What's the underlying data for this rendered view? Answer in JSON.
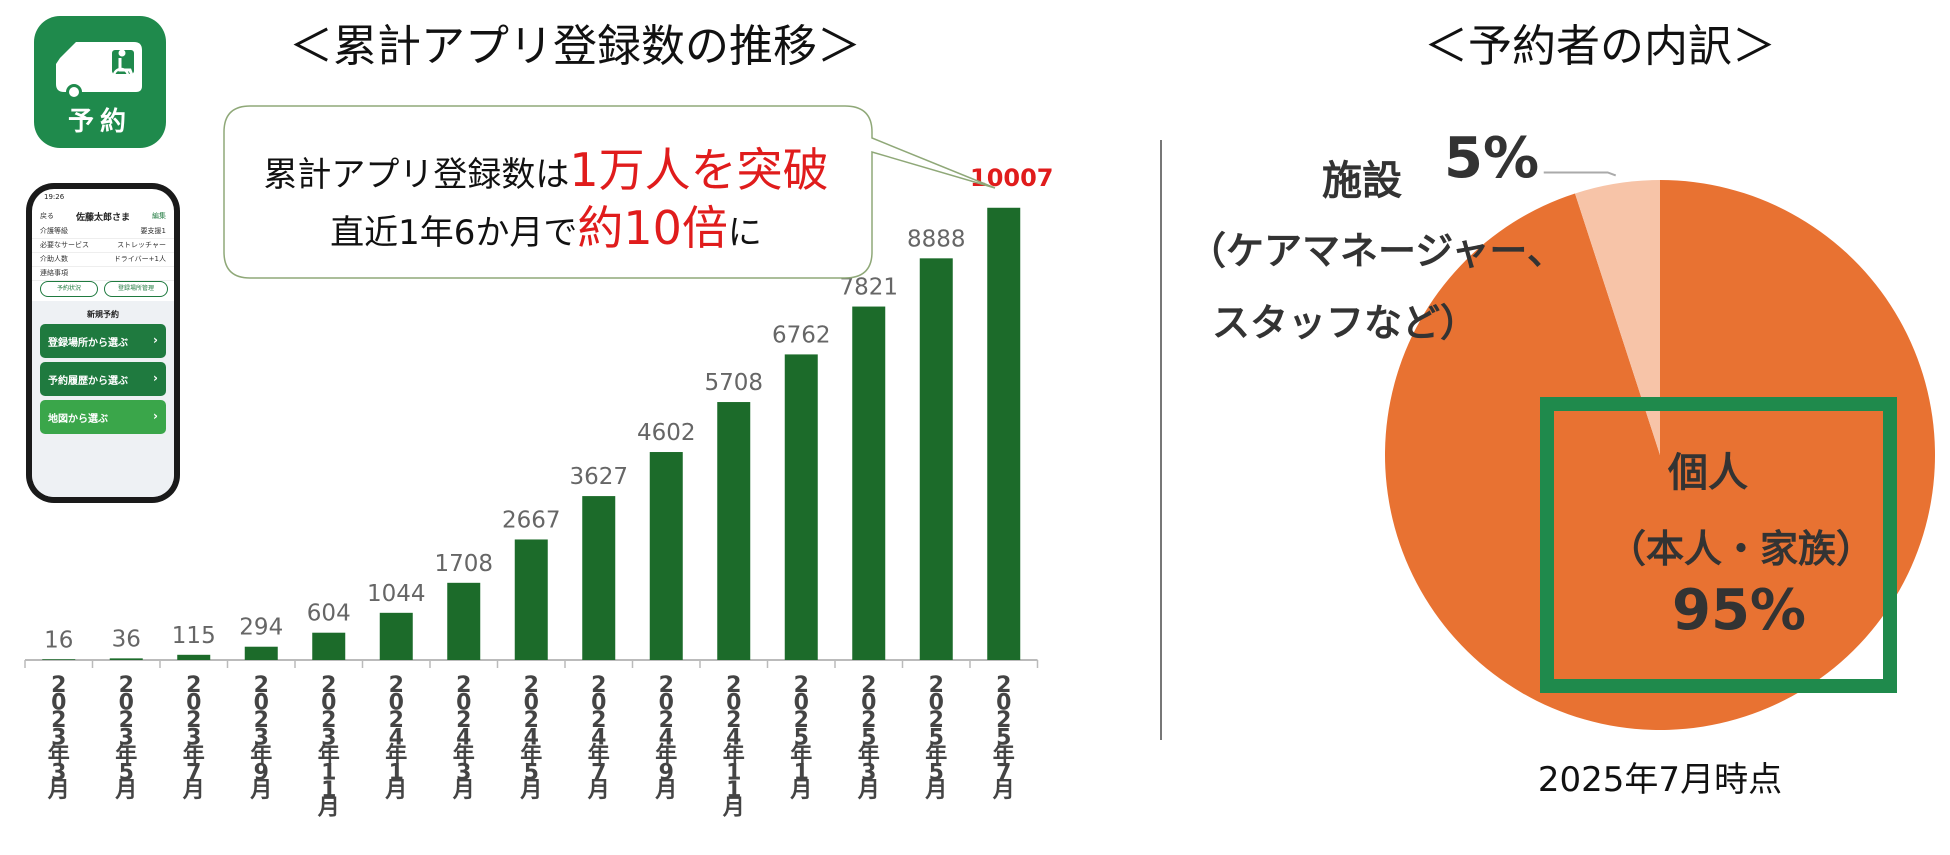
{
  "app_icon": {
    "label": "予約",
    "icon": "wheelchair-van-icon"
  },
  "phone": {
    "time": "19:26",
    "back": "戻る",
    "name": "佐藤太郎さま",
    "edit": "編集",
    "rows": [
      {
        "k": "介護等級",
        "v": "要支援1"
      },
      {
        "k": "必要なサービス",
        "v": "ストレッチャー"
      },
      {
        "k": "介助人数",
        "v": "ドライバー+1人"
      },
      {
        "k": "連絡事項",
        "v": ""
      }
    ],
    "pill1": "予約状況",
    "pill2": "登録場所管理",
    "section": "新規予約",
    "btn1": "登録場所から選ぶ",
    "btn2": "予約履歴から選ぶ",
    "btn3": "地図から選ぶ"
  },
  "callout": {
    "line1_a": "累計アプリ登録数は",
    "line1_b": "1万人を突破",
    "line2_a": "直近1年6か月で",
    "line2_b": "約10倍",
    "line2_c": "に"
  },
  "pie_note": "2025年7月時点",
  "colors": {
    "bar": "#1c6b2a",
    "pie_main": "#e87232",
    "pie_minor": "#f7c4a8",
    "highlight_box": "#1f8a4c",
    "accent_red": "#e01c1c"
  },
  "chart_data": [
    {
      "type": "bar",
      "title": "＜累計アプリ登録数の推移＞",
      "categories": [
        "2023年3月",
        "2023年5月",
        "2023年7月",
        "2023年9月",
        "2023年11月",
        "2024年1月",
        "2024年3月",
        "2024年5月",
        "2024年7月",
        "2024年9月",
        "2024年11月",
        "2025年1月",
        "2025年3月",
        "2025年5月",
        "2025年7月"
      ],
      "values": [
        16,
        36,
        115,
        294,
        604,
        1044,
        1708,
        2667,
        3627,
        4602,
        5708,
        6762,
        7821,
        8888,
        10007
      ],
      "ylim": [
        0,
        10400
      ],
      "grid": false,
      "highlight_last_label": true
    },
    {
      "type": "pie",
      "title": "＜予約者の内訳＞",
      "slices": [
        {
          "label": "個人",
          "sublabel": "（本人・家族）",
          "value": 95,
          "display": "95%"
        },
        {
          "label": "施設",
          "sublabel": "（ケアマネージャー、スタッフなど）",
          "sublabel_lines": [
            "（ケアマネージャー、",
            "スタッフなど）"
          ],
          "value": 5,
          "display": "5%"
        }
      ]
    }
  ]
}
